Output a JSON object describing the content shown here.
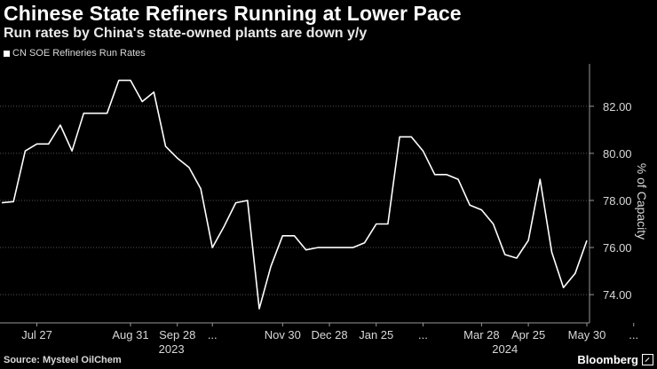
{
  "header": {
    "title": "Chinese State Refiners Running at Lower Pace",
    "subtitle": "Run rates by China's state-owned plants are down y/y"
  },
  "footer": {
    "source": "Source: Mysteel OilChem",
    "brand": "Bloomberg"
  },
  "colors": {
    "background": "#000000",
    "line": "#ffffff",
    "grid": "#555555",
    "text": "#d8d8d8"
  },
  "chart_data": {
    "type": "line",
    "legend": "CN SOE Refineries Run Rates",
    "ylabel": "% of Capacity",
    "ylim": [
      72.8,
      83.8
    ],
    "yticks": [
      74,
      76,
      78,
      80,
      82
    ],
    "ytick_labels": [
      "74.00",
      "76.00",
      "78.00",
      "80.00",
      "82.00"
    ],
    "grid": "horizontal dotted",
    "x_index_range": [
      0,
      47
    ],
    "xticks": [
      {
        "index": 3,
        "label": "Jul 27"
      },
      {
        "index": 11,
        "label": "Aug 31"
      },
      {
        "index": 15,
        "label": "Sep 28"
      },
      {
        "index": 18,
        "label": "..."
      },
      {
        "index": 24,
        "label": "Nov 30"
      },
      {
        "index": 28,
        "label": "Dec 28"
      },
      {
        "index": 32,
        "label": "Jan 25"
      },
      {
        "index": 36,
        "label": "..."
      },
      {
        "index": 41,
        "label": "Mar 28"
      },
      {
        "index": 45,
        "label": "Apr 25"
      },
      {
        "index": 50,
        "label": "May 30"
      },
      {
        "index": 54,
        "label": "..."
      }
    ],
    "year_labels": [
      {
        "index": 14.5,
        "label": "2023"
      },
      {
        "index": 43,
        "label": "2024"
      }
    ],
    "series": [
      {
        "values": [
          77.9,
          77.95,
          80.1,
          80.4,
          80.4,
          81.2,
          80.1,
          81.7,
          81.7,
          81.7,
          83.1,
          83.1,
          82.2,
          82.6,
          80.3,
          79.8,
          79.4,
          78.5,
          76.0,
          76.9,
          77.9,
          78.0,
          73.4,
          75.2,
          76.5,
          76.5,
          75.9,
          76.0,
          76.0,
          76.0,
          76.0,
          76.2,
          77.0,
          77.0,
          80.7,
          80.7,
          80.1,
          79.1,
          79.1,
          78.9,
          77.8,
          77.6,
          77.0,
          75.7,
          75.55,
          76.3,
          78.9,
          75.8,
          74.3,
          74.9,
          76.3
        ]
      }
    ]
  }
}
